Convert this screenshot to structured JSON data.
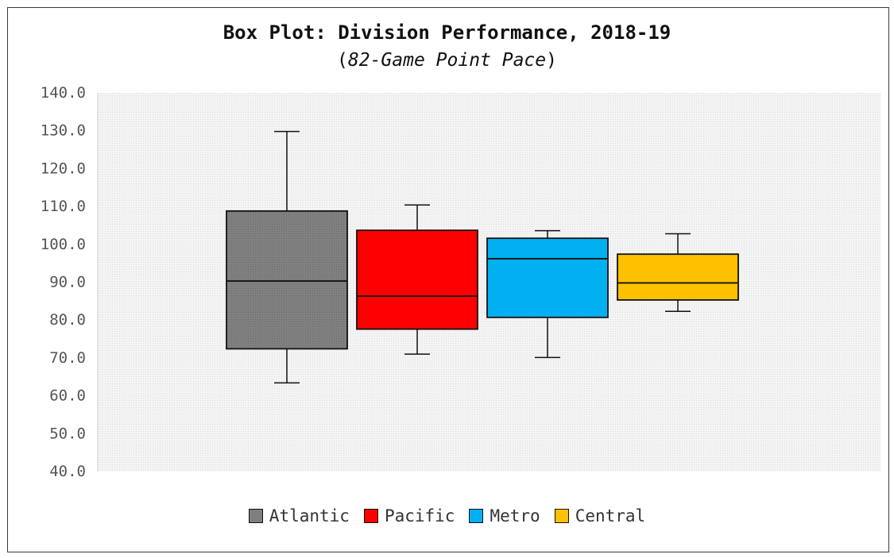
{
  "chart_data": {
    "type": "boxplot",
    "title": "Box Plot: Division Performance, 2018-19",
    "subtitle": {
      "open": "(",
      "text": "82-Game Point Pace",
      "close": ")"
    },
    "ylim": [
      40,
      140
    ],
    "y_ticks": [
      "140.0",
      "130.0",
      "120.0",
      "110.0",
      "100.0",
      "90.0",
      "80.0",
      "70.0",
      "60.0",
      "50.0",
      "40.0"
    ],
    "grid": false,
    "legend_position": "bottom",
    "series": [
      {
        "name": "Atlantic",
        "color": "#7f7f7f",
        "min": 63.4,
        "q1": 72.4,
        "median": 90.3,
        "q3": 108.8,
        "max": 129.8
      },
      {
        "name": "Pacific",
        "color": "#ff0000",
        "min": 71.0,
        "q1": 77.6,
        "median": 86.3,
        "q3": 103.7,
        "max": 110.4
      },
      {
        "name": "Metro",
        "color": "#00b0f0",
        "min": 70.1,
        "q1": 80.7,
        "median": 96.2,
        "q3": 101.6,
        "max": 103.6
      },
      {
        "name": "Central",
        "color": "#ffc000",
        "min": 82.3,
        "q1": 85.3,
        "median": 89.8,
        "q3": 97.4,
        "max": 102.8
      }
    ]
  }
}
